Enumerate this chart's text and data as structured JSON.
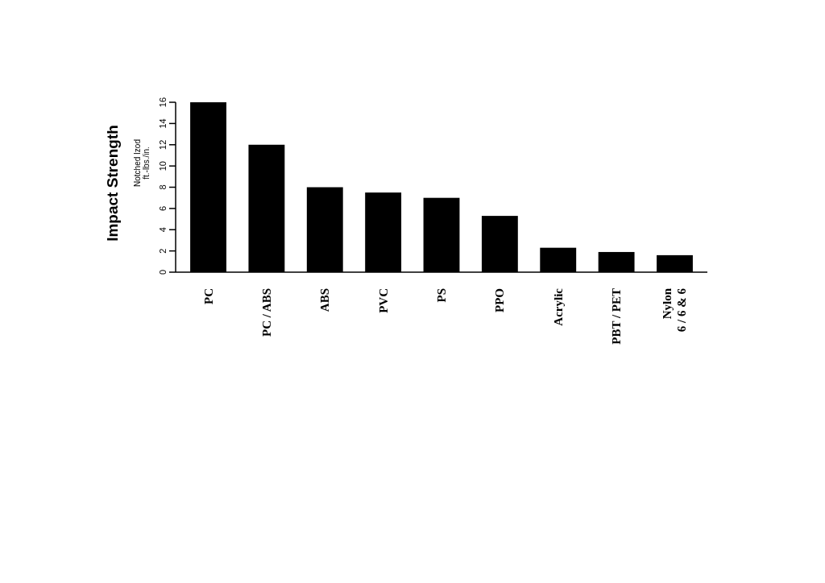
{
  "chart_data": {
    "type": "bar",
    "ylabel": "Impact Strength",
    "annotations": [
      "Notched Izod\nft.-lbs./in."
    ],
    "categories": [
      "PC",
      "PC / ABS",
      "ABS",
      "PVC",
      "PS",
      "PPO",
      "Acrylic",
      "PBT / PET",
      "Nylon\n6 / 6 & 6"
    ],
    "values": [
      16,
      12,
      8,
      7.5,
      7,
      5.3,
      2.3,
      1.9,
      1.6
    ],
    "color": "#000000",
    "ylim": [
      0,
      16
    ],
    "yticks": [
      0,
      2,
      4,
      6,
      8,
      10,
      12,
      14,
      16
    ],
    "grid": false
  }
}
